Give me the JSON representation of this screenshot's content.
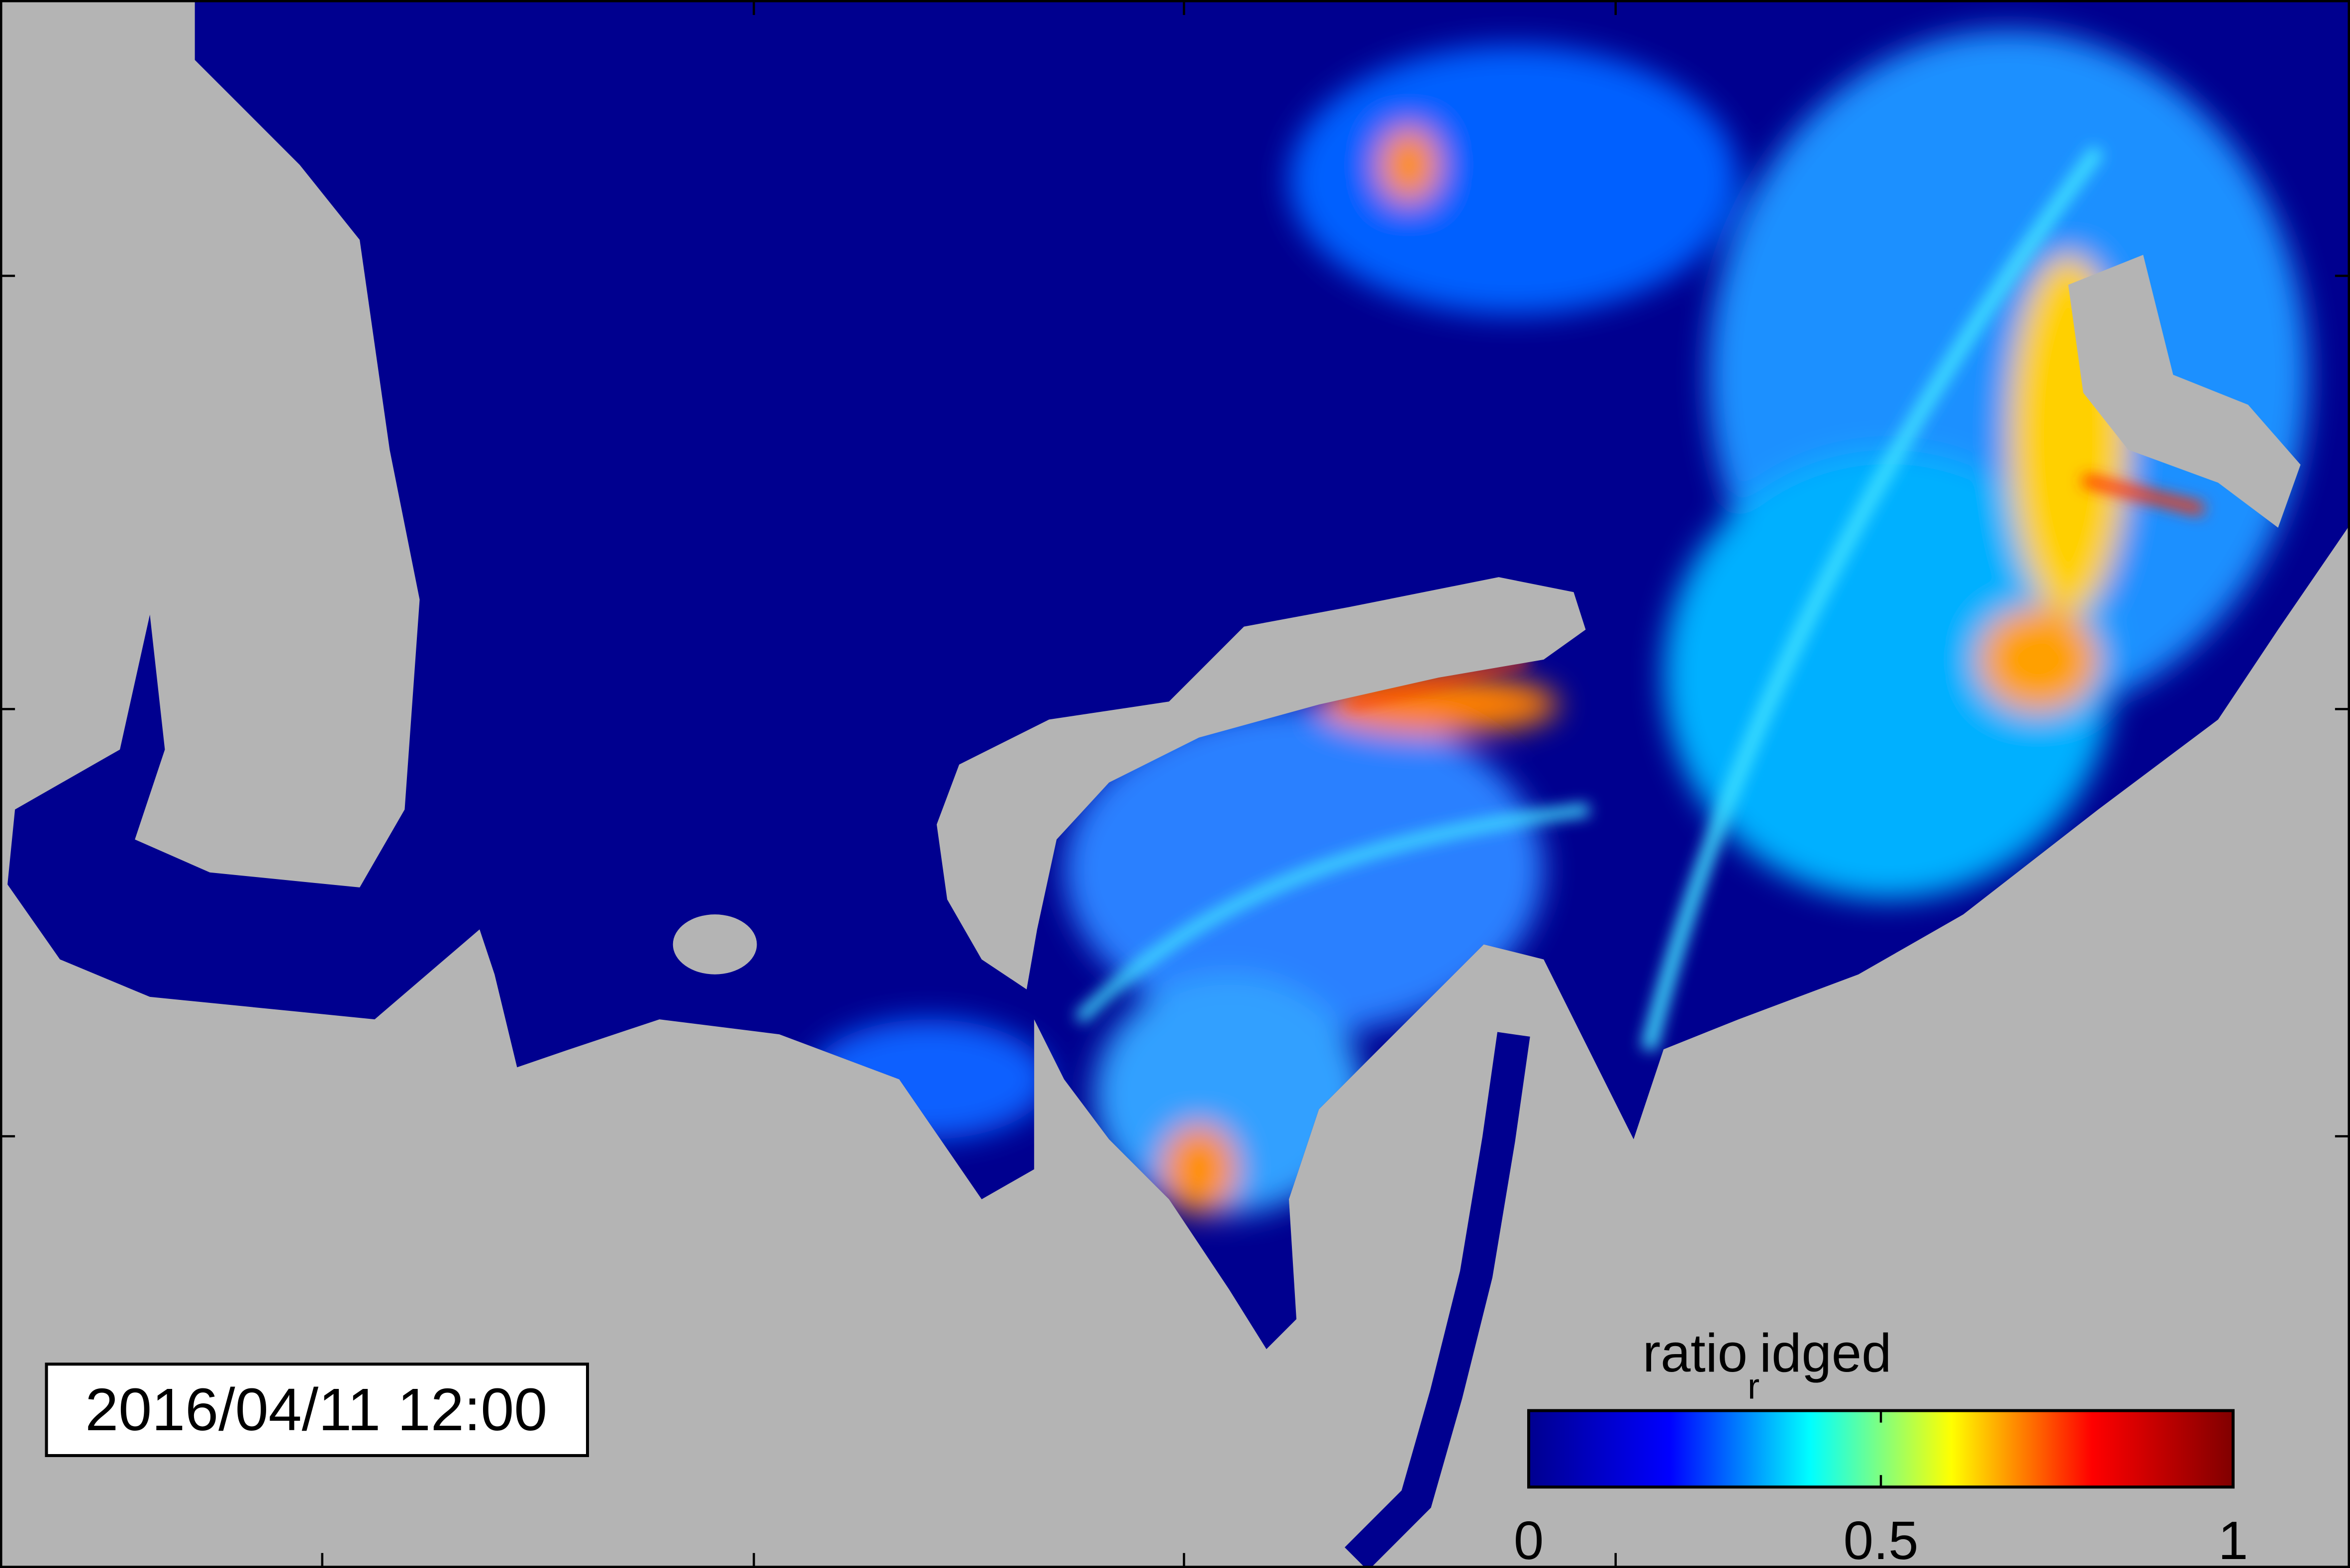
{
  "map": {
    "timestamp": "2016/04/11 12:00",
    "colorbar": {
      "label": "ratio",
      "label_subscript": "r",
      "label_rest": "idged",
      "lim": [
        0,
        1
      ],
      "ticks": [
        0,
        0.5,
        1
      ],
      "colormap": [
        "#00008f",
        "#0000ff",
        "#00ffff",
        "#ffff00",
        "#ff0000",
        "#800000"
      ]
    }
  }
}
